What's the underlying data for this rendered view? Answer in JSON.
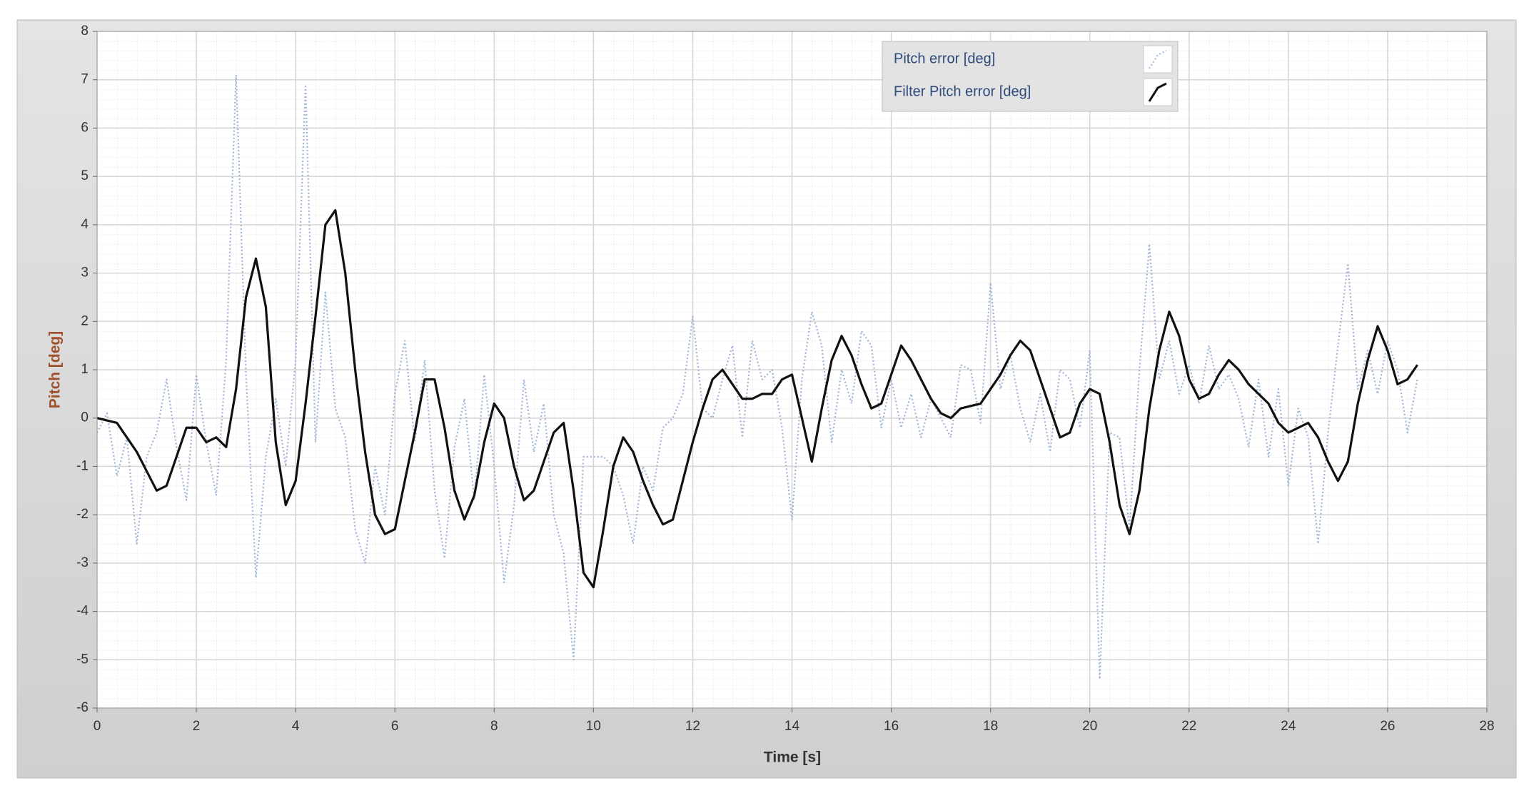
{
  "chart_data": {
    "type": "line",
    "x_label": "Time [s]",
    "y_label": "Pitch [deg]",
    "xlim": [
      0,
      28
    ],
    "ylim": [
      -6,
      8
    ],
    "xticks": [
      0,
      2,
      4,
      6,
      8,
      10,
      12,
      14,
      16,
      18,
      20,
      22,
      24,
      26,
      28
    ],
    "yticks": [
      -6,
      -5,
      -4,
      -3,
      -2,
      -1,
      0,
      1,
      2,
      3,
      4,
      5,
      6,
      7,
      8
    ],
    "grid": true,
    "legend": "top",
    "x": [
      0,
      0.2,
      0.4,
      0.6,
      0.8,
      1.0,
      1.2,
      1.4,
      1.6,
      1.8,
      2.0,
      2.2,
      2.4,
      2.6,
      2.8,
      3.0,
      3.2,
      3.4,
      3.6,
      3.8,
      4.0,
      4.2,
      4.4,
      4.6,
      4.8,
      5.0,
      5.2,
      5.4,
      5.6,
      5.8,
      6.0,
      6.2,
      6.4,
      6.6,
      6.8,
      7.0,
      7.2,
      7.4,
      7.6,
      7.8,
      8.0,
      8.2,
      8.4,
      8.6,
      8.8,
      9.0,
      9.2,
      9.4,
      9.6,
      9.8,
      10.0,
      10.2,
      10.4,
      10.6,
      10.8,
      11.0,
      11.2,
      11.4,
      11.6,
      11.8,
      12.0,
      12.2,
      12.4,
      12.6,
      12.8,
      13.0,
      13.2,
      13.4,
      13.6,
      13.8,
      14.0,
      14.2,
      14.4,
      14.6,
      14.8,
      15.0,
      15.2,
      15.4,
      15.6,
      15.8,
      16.0,
      16.2,
      16.4,
      16.6,
      16.8,
      17.0,
      17.2,
      17.4,
      17.6,
      17.8,
      18.0,
      18.2,
      18.4,
      18.6,
      18.8,
      19.0,
      19.2,
      19.4,
      19.6,
      19.8,
      20.0,
      20.2,
      20.4,
      20.6,
      20.8,
      21.0,
      21.2,
      21.4,
      21.6,
      21.8,
      22.0,
      22.2,
      22.4,
      22.6,
      22.8,
      23.0,
      23.2,
      23.4,
      23.6,
      23.8,
      24.0,
      24.2,
      24.4,
      24.6,
      24.8,
      25.0,
      25.2,
      25.4,
      25.6,
      25.8,
      26.0,
      26.2,
      26.4,
      26.6
    ],
    "series": [
      {
        "name": "Pitch error [deg]",
        "color": "#9fb5d8",
        "style": "dotted",
        "values": [
          -0.3,
          0.1,
          -1.2,
          -0.4,
          -2.6,
          -0.8,
          -0.3,
          0.8,
          -0.6,
          -1.7,
          0.9,
          -0.5,
          -1.6,
          1.2,
          7.1,
          0.9,
          -3.3,
          -0.8,
          0.4,
          -1.0,
          1.2,
          6.9,
          -0.5,
          2.6,
          0.2,
          -0.4,
          -2.3,
          -3.0,
          -1.0,
          -2.0,
          0.5,
          1.6,
          -0.5,
          1.2,
          -1.5,
          -2.9,
          -0.6,
          0.4,
          -1.7,
          0.9,
          -1.0,
          -3.4,
          -1.8,
          0.8,
          -0.7,
          0.3,
          -2.0,
          -2.8,
          -5.0,
          -0.8,
          -0.8,
          -0.8,
          -1.0,
          -1.6,
          -2.6,
          -1.0,
          -1.5,
          -0.2,
          0.0,
          0.5,
          2.1,
          0.2,
          0.0,
          0.8,
          1.5,
          -0.4,
          1.6,
          0.8,
          1.0,
          -0.2,
          -2.1,
          0.8,
          2.2,
          1.5,
          -0.5,
          1.0,
          0.3,
          1.8,
          1.5,
          -0.2,
          0.8,
          -0.2,
          0.5,
          -0.4,
          0.4,
          0.0,
          -0.4,
          1.1,
          1.0,
          -0.1,
          2.8,
          0.6,
          1.3,
          0.2,
          -0.5,
          0.5,
          -0.7,
          1.0,
          0.8,
          -0.2,
          1.4,
          -5.4,
          -0.3,
          -0.4,
          -2.3,
          1.0,
          3.6,
          0.8,
          1.6,
          0.5,
          1.1,
          0.3,
          1.5,
          0.6,
          0.9,
          0.4,
          -0.6,
          0.8,
          -0.8,
          0.6,
          -1.4,
          0.2,
          -0.4,
          -2.6,
          -0.3,
          1.5,
          3.2,
          0.6,
          1.4,
          0.5,
          1.6,
          1.0,
          -0.3,
          0.8
        ]
      },
      {
        "name": "Filter Pitch error [deg]",
        "color": "#111111",
        "style": "solid",
        "values": [
          0,
          -0.05,
          -0.1,
          -0.4,
          -0.7,
          -1.1,
          -1.5,
          -1.4,
          -0.8,
          -0.2,
          -0.2,
          -0.5,
          -0.4,
          -0.6,
          0.6,
          2.5,
          3.3,
          2.3,
          -0.5,
          -1.8,
          -1.3,
          0.3,
          2.1,
          4.0,
          4.3,
          3.0,
          1.0,
          -0.7,
          -2.0,
          -2.4,
          -2.3,
          -1.3,
          -0.3,
          0.8,
          0.8,
          -0.2,
          -1.5,
          -2.1,
          -1.6,
          -0.5,
          0.3,
          0.0,
          -1.0,
          -1.7,
          -1.5,
          -0.9,
          -0.3,
          -0.1,
          -1.5,
          -3.2,
          -3.5,
          -2.3,
          -1.0,
          -0.4,
          -0.7,
          -1.3,
          -1.8,
          -2.2,
          -2.1,
          -1.3,
          -0.5,
          0.2,
          0.8,
          1.0,
          0.7,
          0.4,
          0.4,
          0.5,
          0.5,
          0.8,
          0.9,
          0,
          -0.9,
          0.2,
          1.2,
          1.7,
          1.3,
          0.7,
          0.2,
          0.3,
          0.9,
          1.5,
          1.2,
          0.8,
          0.4,
          0.1,
          0,
          0.2,
          0.25,
          0.3,
          0.6,
          0.9,
          1.3,
          1.6,
          1.4,
          0.8,
          0.2,
          -0.4,
          -0.3,
          0.3,
          0.6,
          0.5,
          -0.5,
          -1.8,
          -2.4,
          -1.5,
          0.2,
          1.4,
          2.2,
          1.7,
          0.8,
          0.4,
          0.5,
          0.9,
          1.2,
          1.0,
          0.7,
          0.5,
          0.3,
          -0.1,
          -0.3,
          -0.2,
          -0.1,
          -0.4,
          -0.9,
          -1.3,
          -0.9,
          0.3,
          1.2,
          1.9,
          1.4,
          0.7,
          0.8,
          1.1
        ]
      }
    ]
  }
}
